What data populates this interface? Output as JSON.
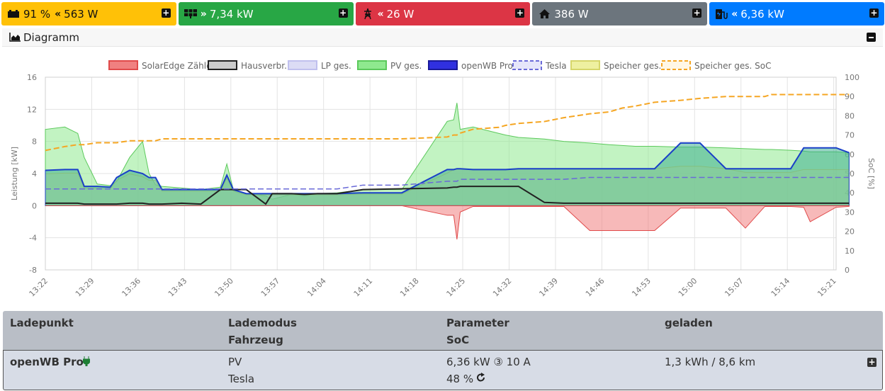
{
  "tiles": [
    {
      "icon": "battery-icon",
      "direction": "«",
      "value": "91 % « 563 W",
      "text": "91 %",
      "text2": "563 W"
    },
    {
      "icon": "solar-panel-icon",
      "direction": "»",
      "text": "7,34 kW"
    },
    {
      "icon": "power-tower-icon",
      "direction": "«",
      "text": "26 W"
    },
    {
      "icon": "house-icon",
      "direction": "",
      "text": "386 W"
    },
    {
      "icon": "charging-station-icon",
      "direction": "«",
      "text": "6,36 kW"
    }
  ],
  "diagram": {
    "title": "Diagramm"
  },
  "chart_data": {
    "type": "area",
    "legend": [
      "SolarEdge Zähler",
      "Hausverbr.",
      "LP ges.",
      "PV ges.",
      "openWB Pro",
      "Tesla",
      "Speicher ges.",
      "Speicher ges. SoC"
    ],
    "ylabel": "Leistung [kW]",
    "y2label": "SoC [%]",
    "ylim": [
      -8,
      16
    ],
    "y2lim": [
      0,
      100
    ],
    "yticks": [
      "16",
      "12",
      "8",
      "4",
      "0",
      "-4",
      "-8"
    ],
    "y2ticks": [
      "100",
      "90",
      "80",
      "70",
      "60",
      "50",
      "40",
      "30",
      "20",
      "10",
      "0"
    ],
    "xticks": [
      "13:22",
      "13:29",
      "13:36",
      "13:43",
      "13:50",
      "13:57",
      "14:04",
      "14:11",
      "14:18",
      "14:25",
      "14:32",
      "14:39",
      "14:46",
      "14:53",
      "15:00",
      "15:07",
      "15:14",
      "15:21"
    ],
    "colors": {
      "zaehler": "#f08080",
      "haus": "#222222",
      "lp": "#dcdcf5",
      "pv": "#8fe98f",
      "pro": "#1a3fc8",
      "tesla": "#6a6ad8",
      "speicher": "#eef0a0",
      "soc": "#f5a623"
    },
    "minutes": [
      0,
      3,
      5,
      6,
      8,
      10,
      11,
      13,
      15,
      16,
      17,
      18,
      21,
      24,
      27,
      28,
      29,
      31,
      34,
      35,
      38,
      40,
      42,
      45,
      49,
      55,
      62,
      63,
      63.5,
      64,
      66,
      70,
      71,
      73,
      77,
      80,
      84,
      87,
      89,
      91,
      94,
      98,
      101,
      105,
      108,
      111,
      112,
      115,
      117,
      118,
      122,
      124
    ],
    "series": {
      "pv": [
        9.5,
        9.8,
        9.0,
        6.0,
        2.7,
        2.5,
        3.0,
        6.0,
        8.0,
        4.0,
        2.6,
        2.4,
        2.2,
        2.0,
        2.3,
        5.2,
        2.0,
        1.5,
        1.2,
        0.8,
        1.4,
        1.2,
        1.5,
        1.6,
        2.0,
        2.0,
        10.5,
        10.7,
        12.8,
        9.5,
        9.8,
        9.0,
        8.8,
        8.5,
        8.3,
        8.0,
        7.8,
        7.6,
        7.5,
        7.4,
        7.4,
        7.3,
        7.3,
        7.2,
        7.1,
        7.0,
        7.0,
        6.9,
        6.8,
        6.7,
        6.7,
        6.6
      ],
      "pro": [
        4.4,
        4.5,
        4.5,
        2.4,
        2.4,
        2.3,
        3.5,
        4.4,
        4.0,
        3.5,
        3.5,
        2.0,
        2.0,
        2.0,
        2.0,
        3.8,
        2.0,
        1.5,
        1.5,
        1.5,
        1.5,
        1.5,
        1.5,
        1.5,
        1.6,
        1.6,
        4.5,
        4.5,
        4.6,
        4.6,
        4.5,
        4.5,
        4.5,
        4.6,
        4.6,
        4.6,
        4.6,
        4.6,
        4.6,
        4.6,
        4.6,
        7.8,
        7.8,
        4.6,
        4.6,
        4.6,
        4.6,
        4.6,
        7.2,
        7.2,
        7.2,
        6.6
      ],
      "zaehler": [
        0,
        0,
        0,
        0,
        0,
        0,
        0,
        0,
        0,
        0,
        0,
        0,
        0,
        0,
        0,
        0,
        0,
        0,
        0,
        0,
        0,
        0,
        0,
        0,
        0,
        0,
        -1.2,
        -1.2,
        -4.2,
        -0.8,
        -0.1,
        -0.1,
        -0.1,
        -0.1,
        -0.1,
        -0.1,
        -3.1,
        -3.1,
        -3.1,
        -3.1,
        -3.1,
        -0.3,
        -0.3,
        -0.3,
        -2.8,
        -0.1,
        -0.1,
        -0.1,
        -0.2,
        -2.0,
        -0.2,
        -0.1
      ],
      "haus": [
        0.3,
        0.3,
        0.3,
        0.2,
        0.2,
        0.2,
        0.2,
        0.3,
        0.3,
        0.2,
        0.2,
        0.2,
        0.3,
        0.2,
        2.0,
        2.0,
        2.0,
        2.0,
        0.2,
        1.5,
        1.5,
        1.4,
        1.5,
        1.5,
        2.0,
        2.1,
        2.2,
        2.3,
        2.3,
        2.4,
        2.4,
        2.4,
        2.4,
        2.4,
        0.4,
        0.3,
        0.3,
        0.3,
        0.3,
        0.3,
        0.3,
        0.3,
        0.3,
        0.3,
        0.3,
        0.3,
        0.3,
        0.3,
        0.3,
        0.3,
        0.3,
        0.3
      ],
      "tesla_soc": [
        42,
        42,
        42,
        42,
        42,
        42,
        42,
        42,
        42,
        42,
        42,
        42,
        42,
        42,
        42,
        42,
        42,
        42,
        42,
        42,
        42,
        42,
        42,
        42,
        44,
        44,
        46,
        46,
        46,
        47,
        47,
        47,
        47,
        47,
        47,
        47,
        48,
        48,
        48,
        48,
        48,
        48,
        48,
        48,
        48,
        48,
        48,
        48,
        48,
        48,
        48,
        48
      ],
      "speicher_soc": [
        62,
        64,
        65,
        65,
        66,
        66,
        66,
        67,
        67,
        67,
        67,
        68,
        68,
        68,
        68,
        68,
        68,
        68,
        68,
        68,
        68,
        68,
        68,
        68,
        68,
        68,
        69,
        70,
        70,
        71,
        73,
        74,
        75,
        76,
        77,
        79,
        81,
        82,
        84,
        85,
        87,
        88,
        89,
        90,
        90,
        90,
        91,
        91,
        91,
        91,
        91,
        91
      ]
    }
  },
  "table": {
    "headers": {
      "ladepunkt": "Ladepunkt",
      "lademodus": "Lademodus",
      "fahrzeug": "Fahrzeug",
      "parameter": "Parameter",
      "soc": "SoC",
      "geladen": "geladen"
    },
    "row": {
      "name": "openWB Pro",
      "mode": "PV",
      "vehicle": "Tesla",
      "power": "6,36 kW ③ 10 A",
      "soc": "48 %",
      "charged": "1,3 kWh / 8,6 km"
    }
  }
}
